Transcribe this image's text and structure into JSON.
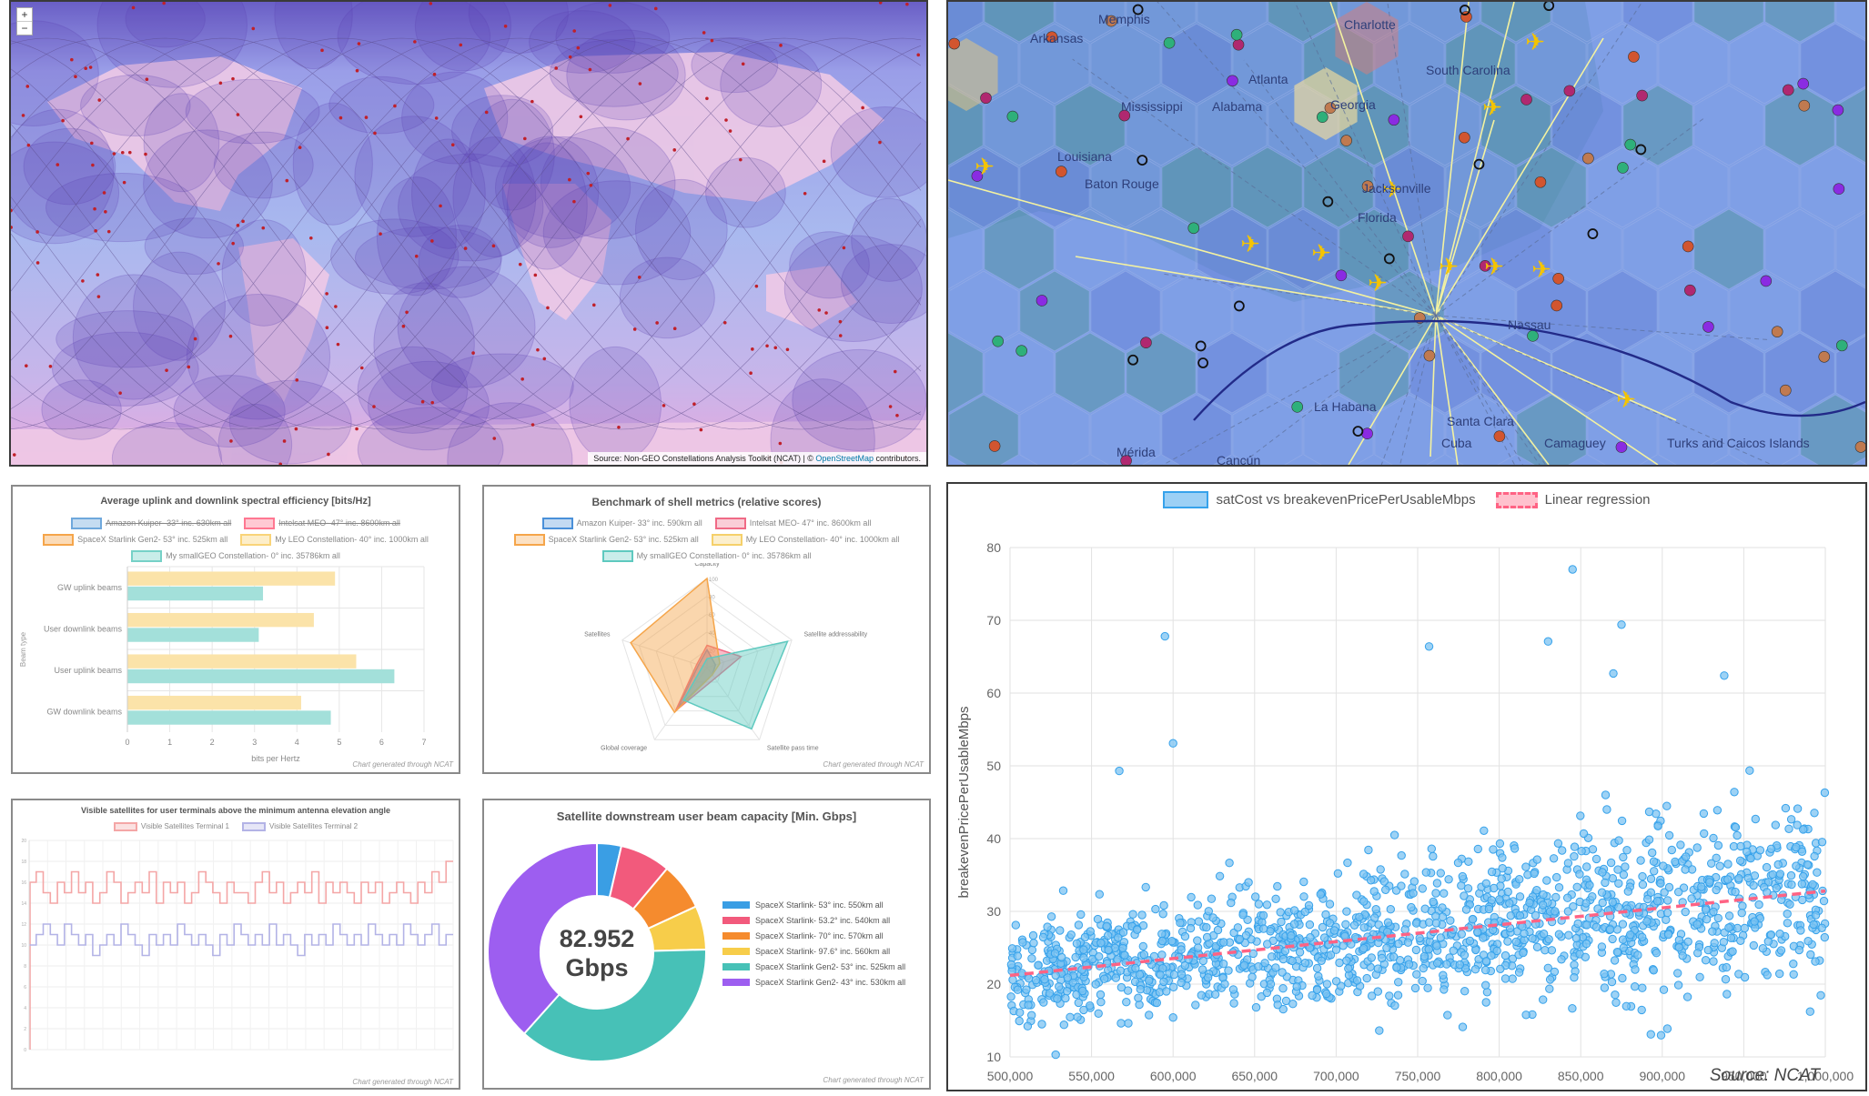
{
  "map_world": {
    "zoom_in": "+",
    "zoom_out": "−",
    "attribution_prefix": "Source: Non-GEO Constellations Analysis Toolkit (NCAT) | © ",
    "attribution_link": "OpenStreetMap",
    "attribution_suffix": " contributors."
  },
  "map_region": {
    "places": [
      "Memphis",
      "Arkansas",
      "Charlotte",
      "South Carolina",
      "Atlanta",
      "Georgia",
      "Mississippi",
      "Alabama",
      "Louisiana",
      "Baton Rouge",
      "Jacksonville",
      "Florida",
      "Nassau",
      "La Habana",
      "Santa Clara",
      "Cuba",
      "Camaguey",
      "Mérida",
      "Cancún",
      "Turks and Caicos Islands"
    ]
  },
  "spectral_chart": {
    "title": "Average uplink and downlink spectral efficiency [bits/Hz]",
    "legend": [
      "Amazon Kuiper- 33° inc. 630km all",
      "Intelsat MEO- 47° inc. 8600km all",
      "SpaceX Starlink Gen2- 53° inc. 525km all",
      "My LEO Constellation- 40° inc. 1000km all",
      "My smallGEO Constellation- 0° inc. 35786km all"
    ],
    "legend_colors": [
      "#6fa8dc",
      "#ff7791",
      "#f5a54a",
      "#f9d479",
      "#76d1c7"
    ],
    "categories": [
      "GW uplink beams",
      "User downlink beams",
      "User uplink beams",
      "GW downlink beams"
    ],
    "series": [
      {
        "name": "My LEO Constellation- 40° inc. 1000km all",
        "color": "#fbe3a9",
        "values": [
          4.9,
          4.4,
          5.4,
          4.1
        ]
      },
      {
        "name": "My smallGEO Constellation- 0° inc. 35786km all",
        "color": "#a3e0da",
        "values": [
          3.2,
          3.1,
          6.3,
          4.8
        ]
      }
    ],
    "x_ticks": [
      "0",
      "1",
      "2",
      "3",
      "4",
      "5",
      "6",
      "7"
    ],
    "xlim": [
      0,
      7
    ],
    "xlabel": "bits per Hertz",
    "ylabel": "Beam type",
    "credit": "Chart generated through NCAT"
  },
  "radar_chart": {
    "title": "Benchmark of shell metrics (relative scores)",
    "legend": [
      "Amazon Kuiper- 33° inc. 590km all",
      "Intelsat MEO- 47° inc. 8600km all",
      "SpaceX Starlink Gen2- 53° inc. 525km all",
      "My LEO Constellation- 40° inc. 1000km all",
      "My smallGEO Constellation- 0° inc. 35786km all"
    ],
    "legend_colors": [
      "#4a90d9",
      "#f06a86",
      "#f5a54a",
      "#f5d06a",
      "#5ec9bf"
    ],
    "axes": [
      "Capacity",
      "Satellite addressability",
      "Satellite pass time",
      "Global coverage",
      "Satellites"
    ],
    "scale_ticks": [
      "20",
      "40",
      "60",
      "80",
      "100"
    ],
    "series": [
      {
        "name": "Amazon Kuiper- 33° inc. 590km all",
        "color": "#4a90d9",
        "values": [
          20,
          10,
          10,
          55,
          10
        ]
      },
      {
        "name": "Intelsat MEO- 47° inc. 8600km all",
        "color": "#f06a86",
        "values": [
          25,
          40,
          15,
          60,
          12
        ]
      },
      {
        "name": "SpaceX Starlink Gen2- 53° inc. 525km all",
        "color": "#f5a54a",
        "values": [
          100,
          15,
          10,
          62,
          90
        ]
      },
      {
        "name": "My smallGEO Constellation- 0° inc. 35786km all",
        "color": "#5ec9bf",
        "values": [
          10,
          95,
          85,
          45,
          5
        ]
      }
    ],
    "credit": "Chart generated through NCAT"
  },
  "visible_chart": {
    "title": "Visible satellites for user terminals above the minimum antenna elevation angle",
    "legend": [
      "Visible Satellites Terminal 1",
      "Visible Satellites Terminal 2"
    ],
    "series": [
      {
        "name": "Visible Satellites Terminal 1",
        "color": "#f4a6a6",
        "values": [
          16,
          17,
          15,
          14,
          16,
          15,
          17,
          15,
          16,
          14,
          15,
          17,
          16,
          14,
          15,
          16,
          15,
          17,
          14,
          16,
          15,
          16,
          14,
          15,
          17,
          16,
          15,
          14,
          16,
          15,
          15,
          14,
          16,
          17,
          15,
          16,
          14,
          15,
          16,
          15,
          17,
          14,
          16,
          15,
          16,
          15,
          14,
          16,
          15,
          16,
          14,
          15,
          16,
          15,
          14,
          16,
          15,
          17,
          16,
          18
        ]
      },
      {
        "name": "Visible Satellites Terminal 2",
        "color": "#b3b3e6",
        "values": [
          10,
          11,
          12,
          11,
          10,
          12,
          11,
          10,
          11,
          9,
          10,
          11,
          10,
          12,
          11,
          10,
          9,
          11,
          10,
          11,
          10,
          12,
          11,
          10,
          11,
          10,
          9,
          11,
          10,
          12,
          11,
          10,
          11,
          10,
          12,
          10,
          11,
          10,
          9,
          11,
          10,
          11,
          10,
          12,
          11,
          10,
          11,
          10,
          12,
          11,
          10,
          11,
          10,
          12,
          11,
          10,
          11,
          12,
          10,
          11
        ]
      }
    ],
    "y_ticks": [
      "0",
      "2",
      "4",
      "6",
      "8",
      "10",
      "12",
      "14",
      "16",
      "18",
      "20"
    ],
    "ylim": [
      0,
      20
    ],
    "credit": "Chart generated through NCAT"
  },
  "donut_chart": {
    "title": "Satellite downstream user beam capacity [Min. Gbps]",
    "center_value": "82.952",
    "center_unit": "Gbps",
    "slices": [
      {
        "label": "SpaceX Starlink- 53° inc. 550km all",
        "color": "#3a9ee4",
        "value": 3.6
      },
      {
        "label": "SpaceX Starlink- 53.2° inc. 540km all",
        "color": "#f25a7c",
        "value": 7.5
      },
      {
        "label": "SpaceX Starlink- 70° inc. 570km all",
        "color": "#f58b2e",
        "value": 7.0
      },
      {
        "label": "SpaceX Starlink- 97.6° inc. 560km all",
        "color": "#f7cd4a",
        "value": 6.5
      },
      {
        "label": "SpaceX Starlink Gen2- 53° inc. 525km all",
        "color": "#47c1b7",
        "value": 37.0
      },
      {
        "label": "SpaceX Starlink Gen2- 43° inc. 530km all",
        "color": "#9d5ef0",
        "value": 38.4
      }
    ],
    "credit": "Chart generated through NCAT"
  },
  "chart_data": {
    "type": "scatter",
    "legend": [
      "satCost vs breakevenPricePerUsableMbps",
      "Linear regression"
    ],
    "legend_colors": [
      "#9cd0f5",
      "#ff6384"
    ],
    "xlabel": "satCost",
    "ylabel": "breakevenPricePerUsableMbps",
    "xlim": [
      500000,
      1000000
    ],
    "ylim": [
      10,
      80
    ],
    "x_ticks": [
      "500,000",
      "550,000",
      "600,000",
      "650,000",
      "700,000",
      "750,000",
      "800,000",
      "850,000",
      "900,000",
      "950,000",
      "1,000,000"
    ],
    "y_ticks": [
      "10",
      "20",
      "30",
      "40",
      "50",
      "60",
      "70",
      "80"
    ],
    "regression": {
      "x": [
        500000,
        1000000
      ],
      "y": [
        21.2,
        32.8
      ]
    },
    "outliers": [
      {
        "x": 595000,
        "y": 67.8
      },
      {
        "x": 600000,
        "y": 53.1
      },
      {
        "x": 567000,
        "y": 49.3
      },
      {
        "x": 845000,
        "y": 77.0
      },
      {
        "x": 875000,
        "y": 69.4
      },
      {
        "x": 830000,
        "y": 67.1
      },
      {
        "x": 757000,
        "y": 66.4
      },
      {
        "x": 938000,
        "y": 62.4
      },
      {
        "x": 870000,
        "y": 62.7
      },
      {
        "x": 528000,
        "y": 10.3
      },
      {
        "x": 893000,
        "y": 13.1
      }
    ],
    "point_count": 1500,
    "source": "Source: NCAT"
  }
}
